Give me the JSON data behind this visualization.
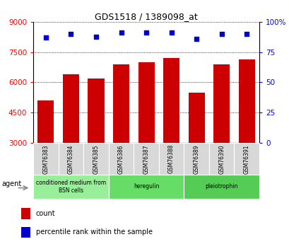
{
  "title": "GDS1518 / 1389098_at",
  "categories": [
    "GSM76383",
    "GSM76384",
    "GSM76385",
    "GSM76386",
    "GSM76387",
    "GSM76388",
    "GSM76389",
    "GSM76390",
    "GSM76391"
  ],
  "bar_values": [
    5100,
    6400,
    6200,
    6900,
    7000,
    7200,
    5500,
    6900,
    7150
  ],
  "percentile_values": [
    87,
    90,
    88,
    91,
    91,
    91,
    86,
    90,
    90
  ],
  "bar_color": "#cc0000",
  "dot_color": "#0000cc",
  "ylim_left": [
    3000,
    9000
  ],
  "ylim_right": [
    0,
    100
  ],
  "yticks_left": [
    3000,
    4500,
    6000,
    7500,
    9000
  ],
  "yticks_right": [
    0,
    25,
    50,
    75,
    100
  ],
  "groups": [
    {
      "label": "conditioned medium from\nBSN cells",
      "start": 0,
      "end": 3,
      "color": "#99ee99"
    },
    {
      "label": "heregulin",
      "start": 3,
      "end": 6,
      "color": "#66dd66"
    },
    {
      "label": "pleiotrophin",
      "start": 6,
      "end": 9,
      "color": "#55cc55"
    }
  ],
  "agent_label": "agent",
  "legend_count_label": "count",
  "legend_pct_label": "percentile rank within the sample",
  "background_color": "#ffffff",
  "plot_bg_color": "#ffffff",
  "label_box_color": "#d8d8d8",
  "bar_bottom": 3000,
  "bar_width": 0.65
}
